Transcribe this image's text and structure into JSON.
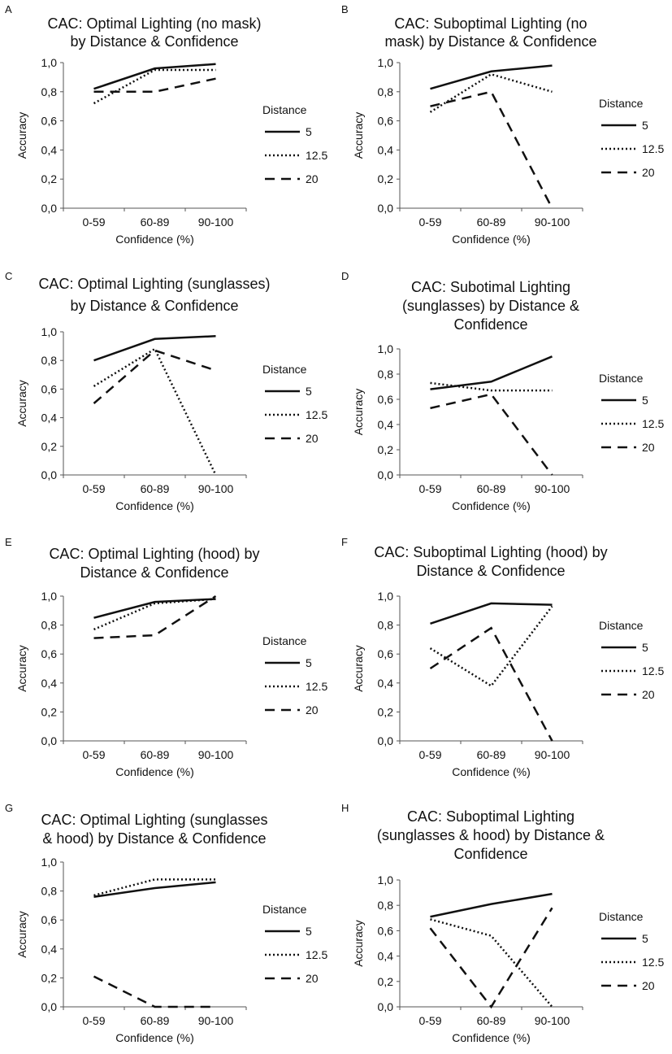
{
  "chart_data": [
    {
      "panel_letter": "A",
      "type": "line",
      "title_lines": [
        "CAC: Optimal Lighting (no mask)",
        "by Distance & Confidence"
      ],
      "xlabel": "Confidence (%)",
      "ylabel": "Accuracy",
      "categories": [
        "0-59",
        "60-89",
        "90-100"
      ],
      "ylim": [
        0,
        1
      ],
      "yticks": [
        "0,0",
        "0,2",
        "0,4",
        "0,6",
        "0,8",
        "1,0"
      ],
      "legend_title": "Distance",
      "grid": false,
      "series": [
        {
          "name": "5",
          "values": [
            0.82,
            0.96,
            0.99
          ]
        },
        {
          "name": "12.5",
          "values": [
            0.72,
            0.95,
            0.95
          ]
        },
        {
          "name": "20",
          "values": [
            0.8,
            0.8,
            0.89
          ]
        }
      ]
    },
    {
      "panel_letter": "B",
      "type": "line",
      "title_lines": [
        "CAC: Suboptimal Lighting (no",
        "mask) by Distance & Confidence"
      ],
      "xlabel": "Confidence (%)",
      "ylabel": "Accuracy",
      "categories": [
        "0-59",
        "60-89",
        "90-100"
      ],
      "ylim": [
        0,
        1
      ],
      "yticks": [
        "0,0",
        "0,2",
        "0,4",
        "0,6",
        "0,8",
        "1,0"
      ],
      "legend_title": "Distance",
      "grid": false,
      "series": [
        {
          "name": "5",
          "values": [
            0.82,
            0.94,
            0.98
          ]
        },
        {
          "name": "12.5",
          "values": [
            0.66,
            0.92,
            0.8
          ]
        },
        {
          "name": "20",
          "values": [
            0.7,
            0.8,
            0.0
          ]
        }
      ]
    },
    {
      "panel_letter": "C",
      "type": "line",
      "title_lines": [
        "CAC: Optimal Lighting (sunglasses)",
        "by Distance & Confidence"
      ],
      "xlabel": "Confidence (%)",
      "ylabel": "Accuracy",
      "categories": [
        "0-59",
        "60-89",
        "90-100"
      ],
      "ylim": [
        0,
        1
      ],
      "yticks": [
        "0,0",
        "0,2",
        "0,4",
        "0,6",
        "0,8",
        "1,0"
      ],
      "legend_title": "Distance",
      "grid": false,
      "series": [
        {
          "name": "5",
          "values": [
            0.8,
            0.95,
            0.97
          ]
        },
        {
          "name": "12.5",
          "values": [
            0.62,
            0.88,
            0.0
          ]
        },
        {
          "name": "20",
          "values": [
            0.5,
            0.87,
            0.73
          ]
        }
      ]
    },
    {
      "panel_letter": "D",
      "type": "line",
      "title_lines": [
        "CAC: Subotimal Lighting",
        "(sunglasses) by Distance &",
        "Confidence"
      ],
      "xlabel": "Confidence (%)",
      "ylabel": "Accuracy",
      "categories": [
        "0-59",
        "60-89",
        "90-100"
      ],
      "ylim": [
        0,
        1
      ],
      "yticks": [
        "0,0",
        "0,2",
        "0,4",
        "0,6",
        "0,8",
        "1,0"
      ],
      "legend_title": "Distance",
      "grid": false,
      "series": [
        {
          "name": "5",
          "values": [
            0.68,
            0.74,
            0.94
          ]
        },
        {
          "name": "12.5",
          "values": [
            0.73,
            0.67,
            0.67
          ]
        },
        {
          "name": "20",
          "values": [
            0.53,
            0.64,
            0.0
          ]
        }
      ]
    },
    {
      "panel_letter": "E",
      "type": "line",
      "title_lines": [
        "CAC: Optimal Lighting (hood) by",
        "Distance & Confidence"
      ],
      "xlabel": "Confidence (%)",
      "ylabel": "Accuracy",
      "categories": [
        "0-59",
        "60-89",
        "90-100"
      ],
      "ylim": [
        0,
        1
      ],
      "yticks": [
        "0,0",
        "0,2",
        "0,4",
        "0,6",
        "0,8",
        "1,0"
      ],
      "legend_title": "Distance",
      "grid": false,
      "series": [
        {
          "name": "5",
          "values": [
            0.85,
            0.96,
            0.98
          ]
        },
        {
          "name": "12.5",
          "values": [
            0.77,
            0.95,
            0.98
          ]
        },
        {
          "name": "20",
          "values": [
            0.71,
            0.73,
            1.0
          ]
        }
      ]
    },
    {
      "panel_letter": "F",
      "type": "line",
      "title_lines": [
        "CAC: Suboptimal Lighting (hood) by",
        "Distance & Confidence"
      ],
      "xlabel": "Confidence (%)",
      "ylabel": "Accuracy",
      "categories": [
        "0-59",
        "60-89",
        "90-100"
      ],
      "ylim": [
        0,
        1
      ],
      "yticks": [
        "0,0",
        "0,2",
        "0,4",
        "0,6",
        "0,8",
        "1,0"
      ],
      "legend_title": "Distance",
      "grid": false,
      "series": [
        {
          "name": "5",
          "values": [
            0.81,
            0.95,
            0.94
          ]
        },
        {
          "name": "12.5",
          "values": [
            0.64,
            0.38,
            0.93
          ]
        },
        {
          "name": "20",
          "values": [
            0.5,
            0.78,
            0.0
          ]
        }
      ]
    },
    {
      "panel_letter": "G",
      "type": "line",
      "title_lines": [
        "CAC: Optimal Lighting (sunglasses",
        "& hood) by Distance & Confidence"
      ],
      "xlabel": "Confidence (%)",
      "ylabel": "Accuracy",
      "categories": [
        "0-59",
        "60-89",
        "90-100"
      ],
      "ylim": [
        0,
        1
      ],
      "yticks": [
        "0,0",
        "0,2",
        "0,4",
        "0,6",
        "0,8",
        "1,0"
      ],
      "legend_title": "Distance",
      "grid": false,
      "series": [
        {
          "name": "5",
          "values": [
            0.76,
            0.82,
            0.86
          ]
        },
        {
          "name": "12.5",
          "values": [
            0.77,
            0.88,
            0.88
          ]
        },
        {
          "name": "20",
          "values": [
            0.21,
            0.0,
            0.0
          ]
        }
      ]
    },
    {
      "panel_letter": "H",
      "type": "line",
      "title_lines": [
        "CAC: Suboptimal Lighting",
        "(sunglasses & hood) by Distance &",
        "Confidence"
      ],
      "xlabel": "Confidence (%)",
      "ylabel": "Accuracy",
      "categories": [
        "0-59",
        "60-89",
        "90-100"
      ],
      "ylim": [
        0,
        1
      ],
      "yticks": [
        "0,0",
        "0,2",
        "0,4",
        "0,6",
        "0,8",
        "1,0"
      ],
      "legend_title": "Distance",
      "grid": false,
      "series": [
        {
          "name": "5",
          "values": [
            0.71,
            0.81,
            0.89
          ]
        },
        {
          "name": "12.5",
          "values": [
            0.69,
            0.56,
            0.0
          ]
        },
        {
          "name": "20",
          "values": [
            0.62,
            0.0,
            0.78
          ]
        }
      ]
    }
  ]
}
